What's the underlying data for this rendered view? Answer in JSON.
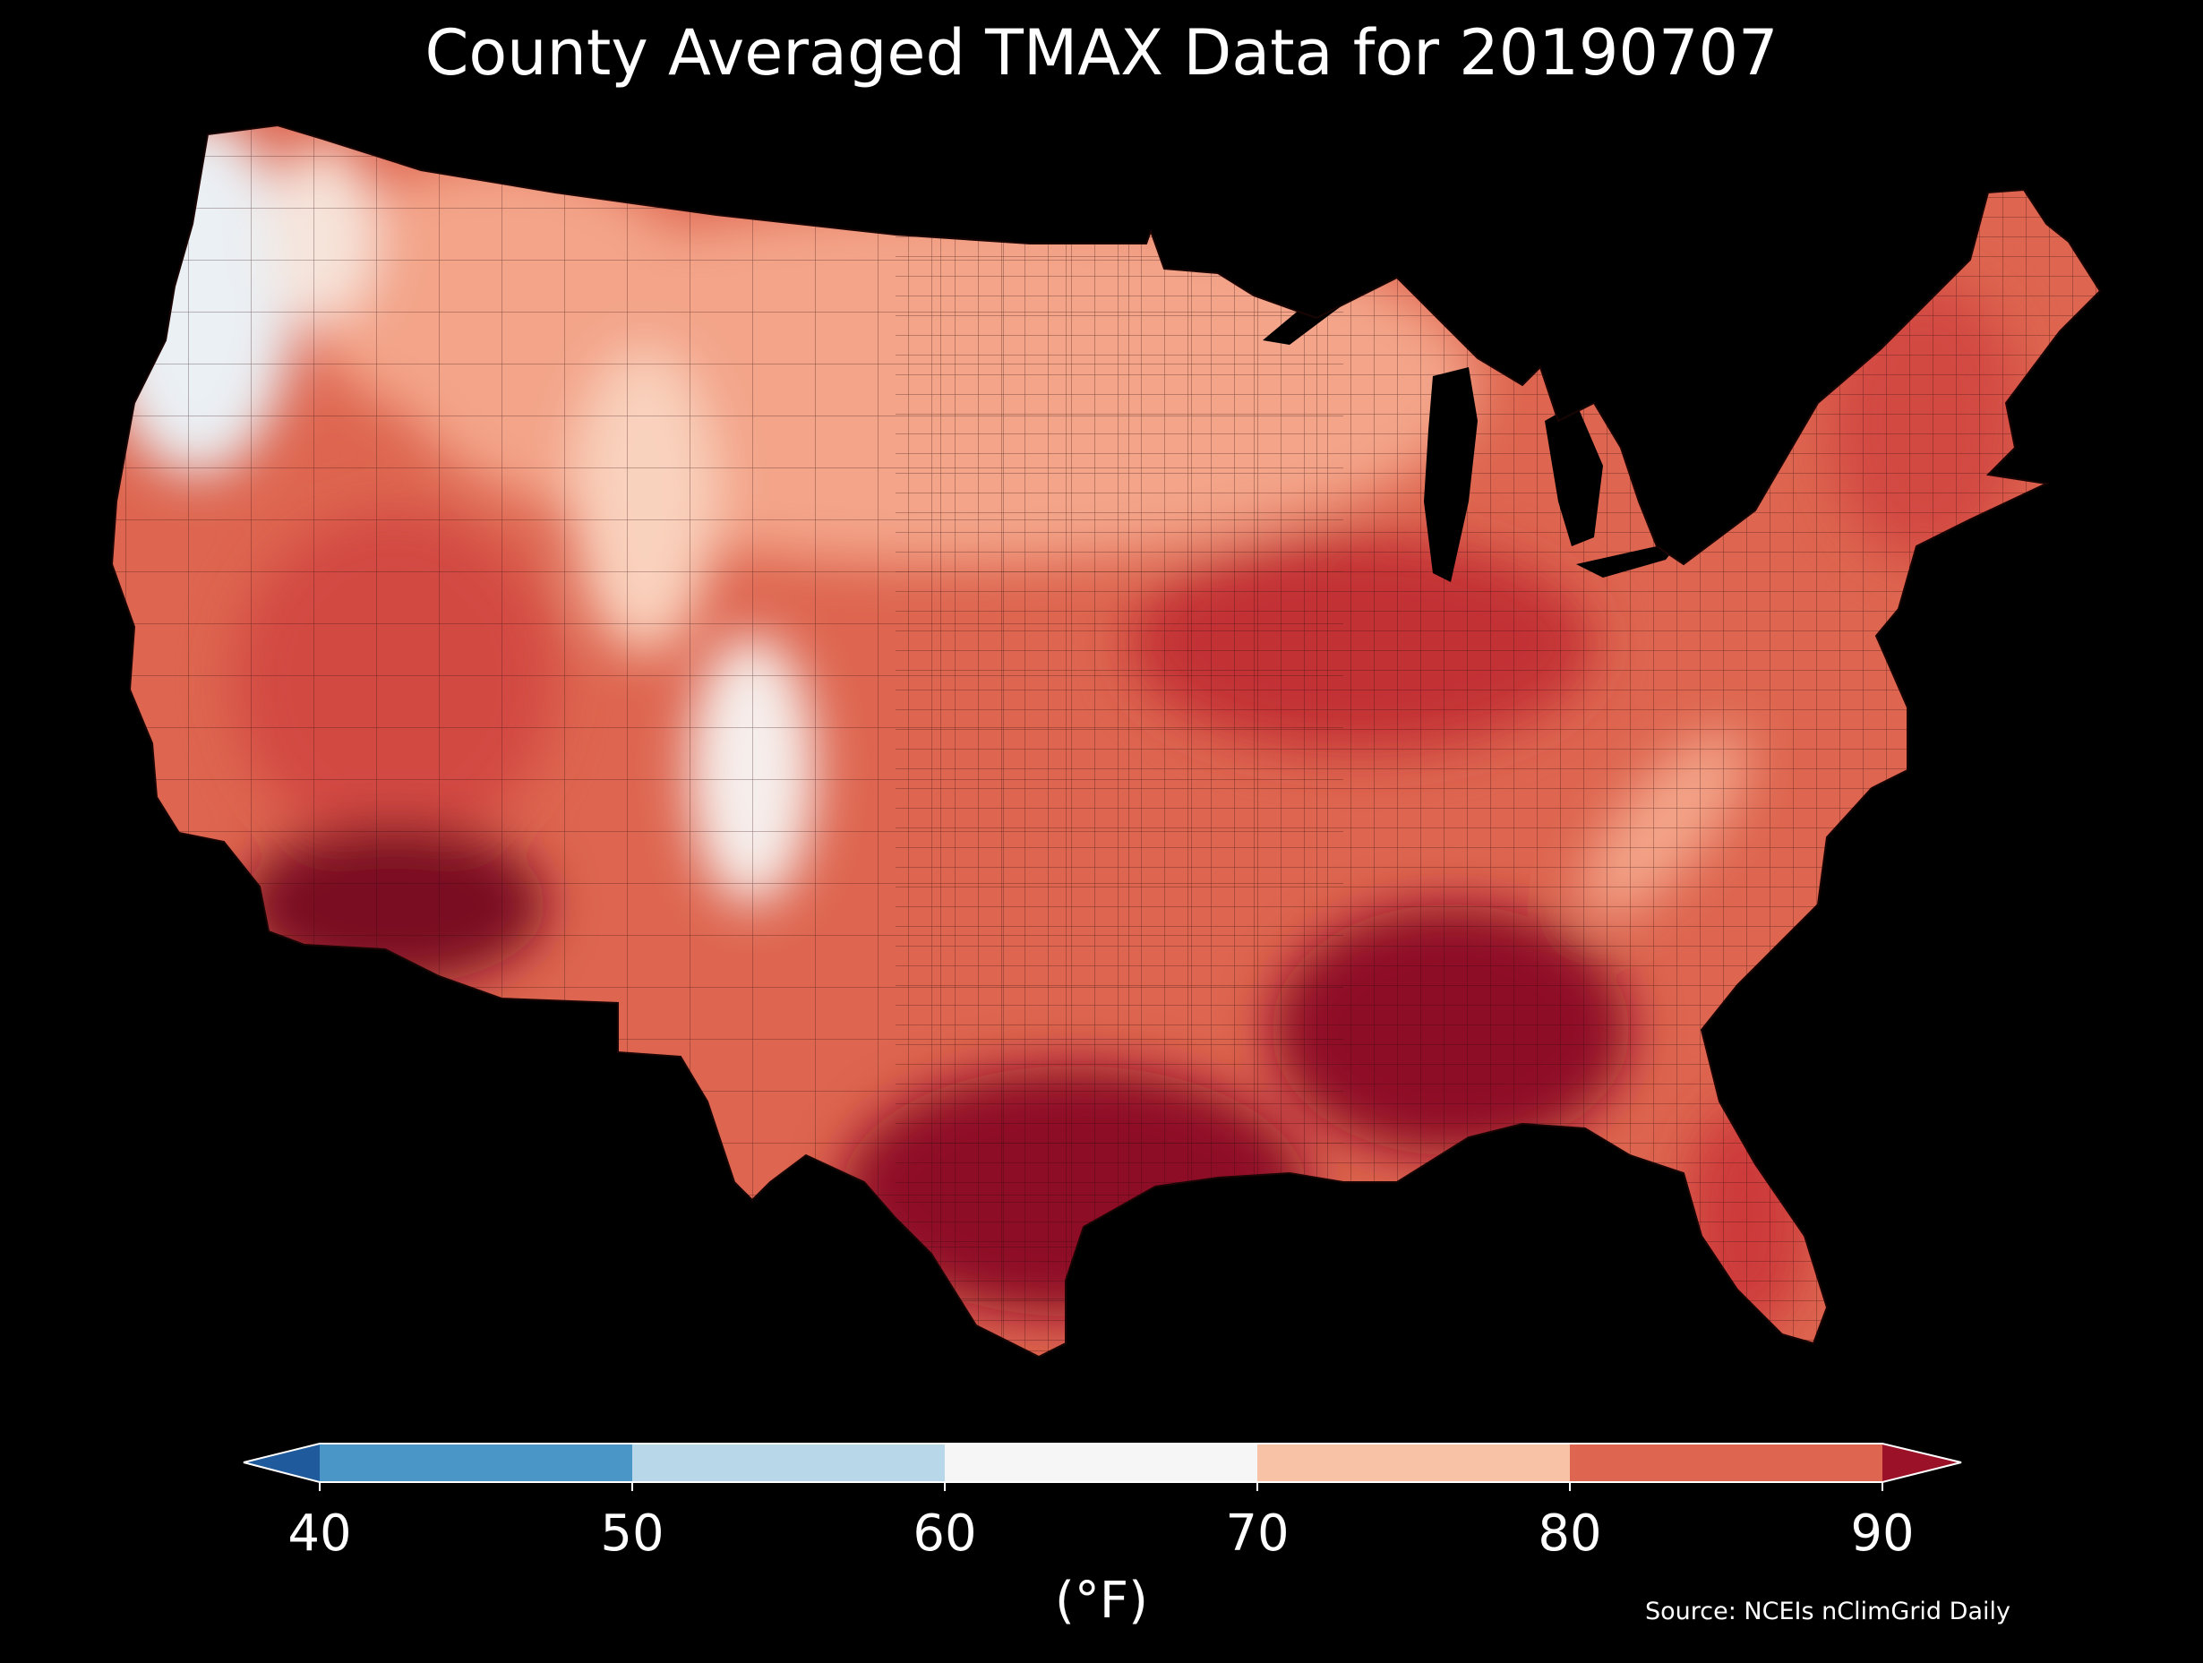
{
  "title": "County Averaged TMAX Data for 20190707",
  "colorbar": {
    "ticks": [
      "40",
      "50",
      "60",
      "70",
      "80",
      "90"
    ],
    "unit": "(°F)",
    "bins": [
      {
        "range": "<40",
        "color": "#1f5a9c"
      },
      {
        "range": "40-50",
        "color": "#4a96c6"
      },
      {
        "range": "50-60",
        "color": "#b8d8ea"
      },
      {
        "range": "60-70",
        "color": "#f6f6f6"
      },
      {
        "range": "70-80",
        "color": "#f8c2a6"
      },
      {
        "range": "80-90",
        "color": "#de6650"
      },
      {
        "range": ">90",
        "color": "#9b1127"
      }
    ]
  },
  "source": "Source: NCEIs nClimGrid Daily",
  "map": {
    "background": "#000000",
    "water_color": "#000000",
    "county_border_color": "#2a0a0a",
    "regions": [
      {
        "name": "pacific-northwest-coast",
        "tmax_bin": "60-70"
      },
      {
        "name": "northern-rockies",
        "tmax_bin": "70-80"
      },
      {
        "name": "northern-plains",
        "tmax_bin": "70-80"
      },
      {
        "name": "colorado-high-plains",
        "tmax_bin": "60-70"
      },
      {
        "name": "great-basin",
        "tmax_bin": "80-90"
      },
      {
        "name": "desert-southwest",
        "tmax_bin": ">90"
      },
      {
        "name": "midwest",
        "tmax_bin": "80-90"
      },
      {
        "name": "southern-plains",
        "tmax_bin": ">90"
      },
      {
        "name": "southeast",
        "tmax_bin": ">90"
      },
      {
        "name": "appalachians",
        "tmax_bin": "70-80"
      },
      {
        "name": "northeast",
        "tmax_bin": "80-90"
      },
      {
        "name": "florida",
        "tmax_bin": "80-90"
      }
    ]
  }
}
